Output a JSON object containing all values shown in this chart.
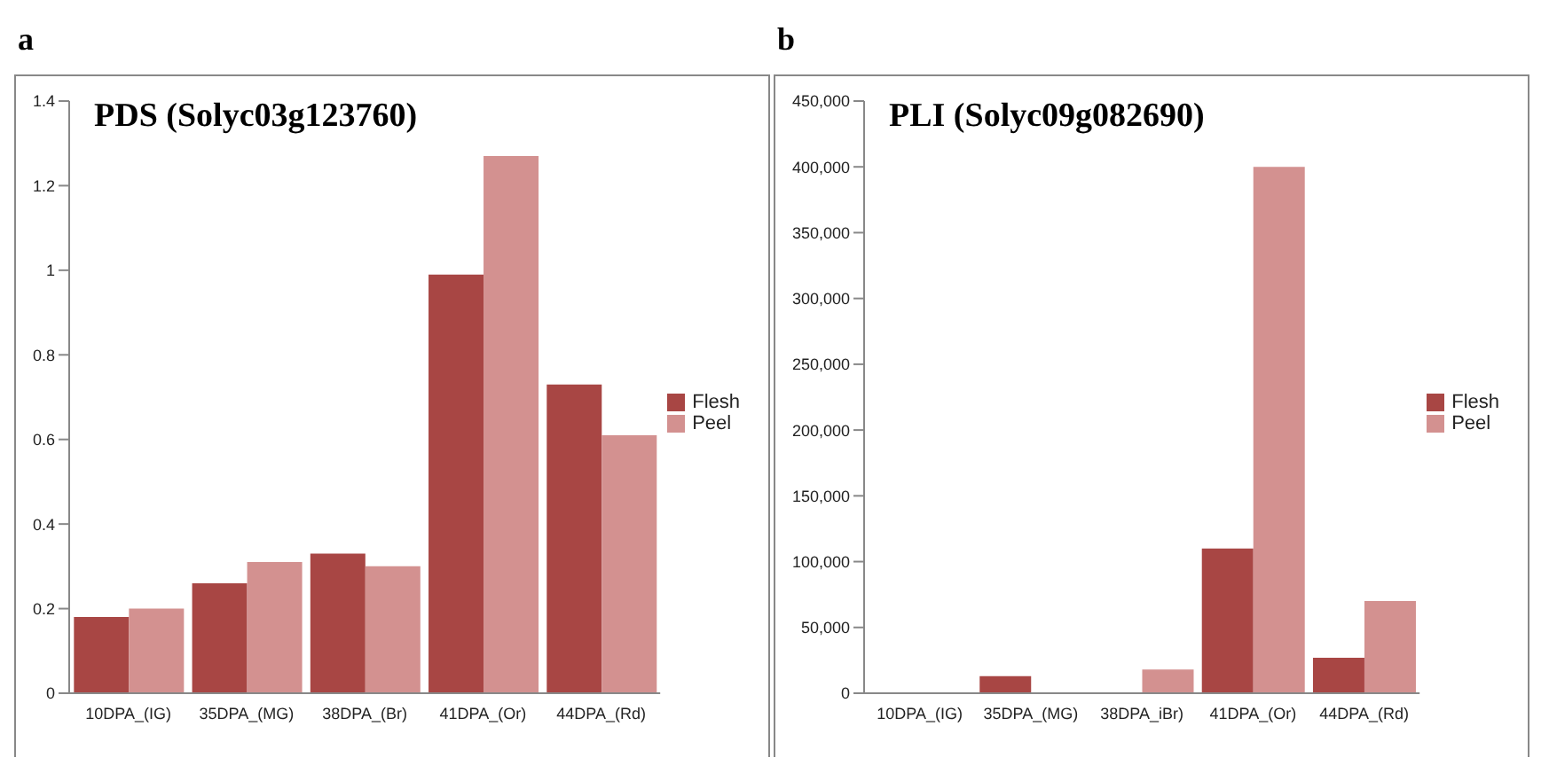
{
  "chart_data": [
    {
      "type": "bar",
      "title": "PDS (Solyc03g123760)",
      "annotations": [
        "a"
      ],
      "categories": [
        "10DPA_(IG)",
        "35DPA_(MG)",
        "38DPA_(Br)",
        "41DPA_(Or)",
        "44DPA_(Rd)"
      ],
      "series": [
        {
          "name": "Flesh",
          "color": "#a84644",
          "values": [
            0.18,
            0.26,
            0.33,
            0.99,
            0.73
          ]
        },
        {
          "name": "Peel",
          "color": "#d39190",
          "values": [
            0.2,
            0.31,
            0.3,
            1.27,
            0.61
          ]
        }
      ],
      "ylim": [
        0,
        1.4
      ],
      "yticks": [
        0,
        0.2,
        0.4,
        0.6,
        0.8,
        1,
        1.2,
        1.4
      ],
      "grid": false,
      "legend": "right"
    },
    {
      "type": "bar",
      "title": "PLI (Solyc09g082690)",
      "annotations": [
        "b"
      ],
      "categories": [
        "10DPA_(IG)",
        "35DPA_(MG)",
        "38DPA_iBr)",
        "41DPA_(Or)",
        "44DPA_(Rd)"
      ],
      "series": [
        {
          "name": "Flesh",
          "color": "#a84644",
          "values": [
            0,
            13000,
            0,
            110000,
            27000
          ]
        },
        {
          "name": "Peel",
          "color": "#d39190",
          "values": [
            0,
            0,
            18000,
            400000,
            70000
          ]
        }
      ],
      "ylim": [
        0,
        450000
      ],
      "yticks": [
        0,
        {
          "value": 50000,
          "label": "50,000"
        },
        {
          "value": 100000,
          "label": "100,000"
        },
        {
          "value": 150000,
          "label": "150,000"
        },
        {
          "value": 200000,
          "label": "200,000"
        },
        {
          "value": 250000,
          "label": "250,000"
        },
        {
          "value": 300000,
          "label": "300,000"
        },
        {
          "value": 350000,
          "label": "350,000"
        },
        {
          "value": 400000,
          "label": "400,000"
        },
        {
          "value": 450000,
          "label": "450,000"
        }
      ],
      "grid": false,
      "legend": "right"
    }
  ]
}
